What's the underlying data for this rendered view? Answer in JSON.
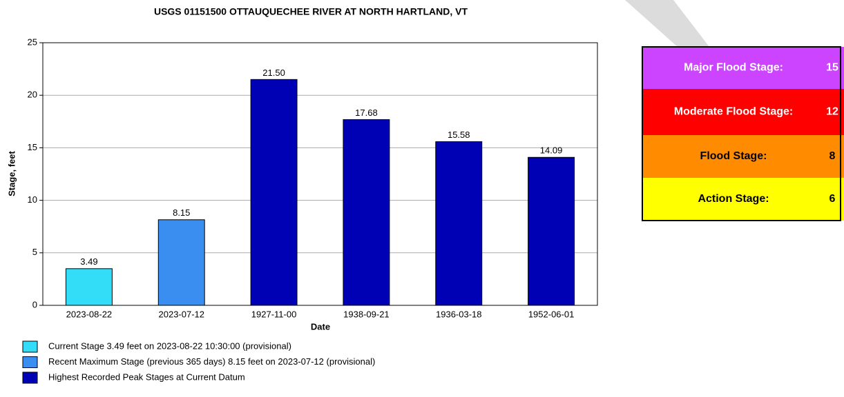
{
  "chart_data": {
    "type": "bar",
    "title": "USGS 01151500 OTTAUQUECHEE RIVER AT NORTH HARTLAND, VT",
    "x_label": "Date",
    "y_label": "Stage, feet",
    "categories": [
      "2023-08-22",
      "2023-07-12",
      "1927-11-00",
      "1938-09-21",
      "1936-03-18",
      "1952-06-01"
    ],
    "values": [
      3.49,
      8.15,
      21.5,
      17.68,
      15.58,
      14.09
    ],
    "value_labels": [
      "3.49",
      "8.15",
      "21.50",
      "17.68",
      "15.58",
      "14.09"
    ],
    "colors": [
      "#33ddf8",
      "#3a8ef0",
      "#0000b4",
      "#0000b4",
      "#0000b4",
      "#0000b4"
    ],
    "ylim": [
      0,
      25
    ],
    "yticks": [
      0,
      5,
      10,
      15,
      20,
      25
    ],
    "grid": true,
    "legend": [
      {
        "label": "Current Stage 3.49 feet on 2023-08-22 10:30:00 (provisional)",
        "color": "#33ddf8"
      },
      {
        "label": "Recent Maximum Stage (previous 365 days) 8.15 feet on 2023-07-12 (provisional)",
        "color": "#3a8ef0"
      },
      {
        "label": "Highest Recorded Peak Stages at Current Datum",
        "color": "#0000b4"
      }
    ]
  },
  "flood_stages": [
    {
      "label": "Major Flood Stage:",
      "value": 15,
      "color": "#cc44ff",
      "text_color": "#ffffff"
    },
    {
      "label": "Moderate Flood Stage:",
      "value": 12,
      "color": "#ff0000",
      "text_color": "#ffffff"
    },
    {
      "label": "Flood Stage:",
      "value": 8,
      "color": "#ff8c00",
      "text_color": "#000000"
    },
    {
      "label": "Action Stage:",
      "value": 6,
      "color": "#ffff00",
      "text_color": "#000000"
    }
  ]
}
